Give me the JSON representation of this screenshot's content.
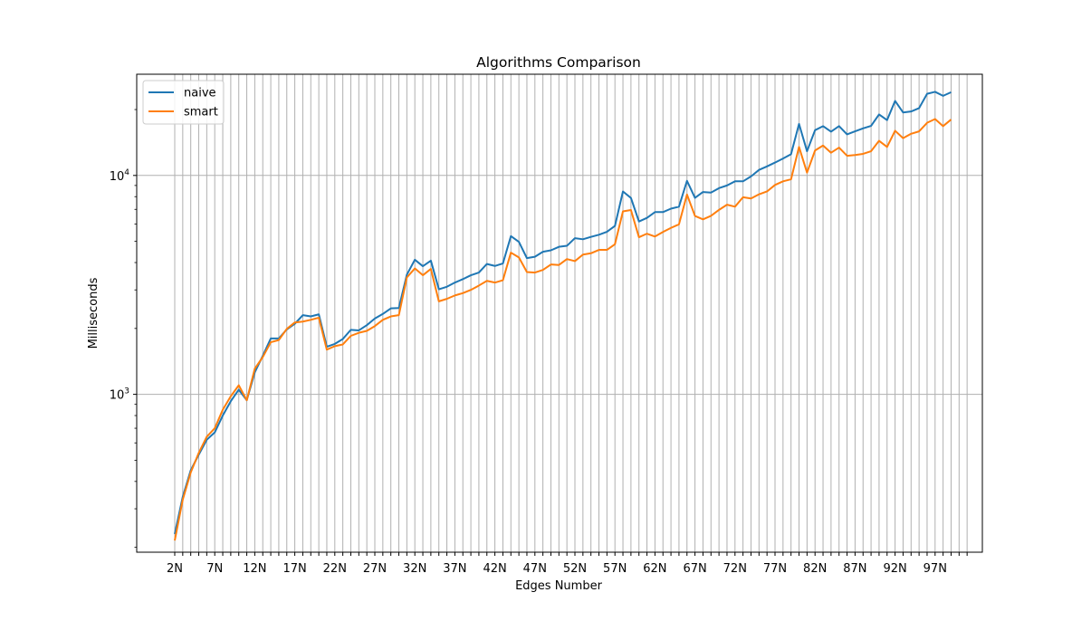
{
  "chart_data": {
    "type": "line",
    "title": "Algorithms Comparison",
    "xlabel": "Edges Number",
    "ylabel": "Milliseconds",
    "yscale": "log",
    "ylim": [
      190,
      29000
    ],
    "grid": "on",
    "legend_position": "top-left",
    "x_tick_labels": [
      "2N",
      "7N",
      "12N",
      "17N",
      "22N",
      "27N",
      "32N",
      "37N",
      "42N",
      "47N",
      "52N",
      "57N",
      "62N",
      "67N",
      "72N",
      "77N",
      "82N",
      "87N",
      "92N",
      "97N"
    ],
    "y_major_ticks": [
      1000,
      10000
    ],
    "y_tick_labels": [
      {
        "mantissa": "10",
        "exponent": "3"
      },
      {
        "mantissa": "10",
        "exponent": "4"
      }
    ],
    "colors": {
      "naive": "#1f77b4",
      "smart": "#ff7f0e",
      "grid": "#b0b0b0"
    },
    "x": [
      "2N",
      "3N",
      "4N",
      "5N",
      "6N",
      "7N",
      "8N",
      "9N",
      "10N",
      "11N",
      "12N",
      "13N",
      "14N",
      "15N",
      "16N",
      "17N",
      "18N",
      "19N",
      "20N",
      "21N",
      "22N",
      "23N",
      "24N",
      "25N",
      "26N",
      "27N",
      "28N",
      "29N",
      "30N",
      "31N",
      "32N",
      "33N",
      "34N",
      "35N",
      "36N",
      "37N",
      "38N",
      "39N",
      "40N",
      "41N",
      "42N",
      "43N",
      "44N",
      "45N",
      "46N",
      "47N",
      "48N",
      "49N",
      "50N",
      "51N",
      "52N",
      "53N",
      "54N",
      "55N",
      "56N",
      "57N",
      "58N",
      "59N",
      "60N",
      "61N",
      "62N",
      "63N",
      "64N",
      "65N",
      "66N",
      "67N",
      "68N",
      "69N",
      "70N",
      "71N",
      "72N",
      "73N",
      "74N",
      "75N",
      "76N",
      "77N",
      "78N",
      "79N",
      "80N",
      "81N",
      "82N",
      "83N",
      "84N",
      "85N",
      "86N",
      "87N",
      "88N",
      "89N",
      "90N",
      "91N",
      "92N",
      "93N",
      "94N",
      "95N",
      "96N",
      "97N",
      "98N",
      "99N",
      "100N",
      "101N"
    ],
    "series": [
      {
        "name": "naive",
        "values": [
          230,
          340,
          450,
          530,
          620,
          670,
          800,
          930,
          1050,
          940,
          1260,
          1500,
          1800,
          1800,
          1980,
          2100,
          2300,
          2270,
          2320,
          1650,
          1700,
          1790,
          1970,
          1960,
          2070,
          2220,
          2330,
          2470,
          2480,
          3520,
          4120,
          3850,
          4080,
          3020,
          3100,
          3240,
          3360,
          3500,
          3600,
          3940,
          3860,
          3960,
          5280,
          4970,
          4190,
          4250,
          4480,
          4550,
          4720,
          4770,
          5170,
          5110,
          5240,
          5360,
          5530,
          5880,
          8450,
          7890,
          6160,
          6400,
          6800,
          6800,
          7050,
          7200,
          9450,
          7900,
          8400,
          8350,
          8750,
          9000,
          9400,
          9400,
          9900,
          10600,
          11000,
          11450,
          11950,
          12500,
          17200,
          12900,
          16100,
          16800,
          15850,
          16800,
          15400,
          15900,
          16400,
          16850,
          19000,
          17900,
          21900,
          19400,
          19600,
          20300,
          23600,
          24100,
          23100,
          24000,
          null,
          null
        ]
      },
      {
        "name": "smart",
        "values": [
          215,
          330,
          440,
          540,
          640,
          700,
          850,
          980,
          1100,
          940,
          1310,
          1480,
          1730,
          1770,
          1990,
          2130,
          2150,
          2190,
          2240,
          1600,
          1660,
          1690,
          1850,
          1910,
          1950,
          2050,
          2190,
          2270,
          2300,
          3420,
          3760,
          3500,
          3740,
          2660,
          2730,
          2830,
          2900,
          3000,
          3140,
          3300,
          3240,
          3320,
          4440,
          4220,
          3620,
          3600,
          3700,
          3920,
          3900,
          4150,
          4060,
          4350,
          4410,
          4570,
          4570,
          4850,
          6850,
          6950,
          5220,
          5420,
          5260,
          5520,
          5760,
          5980,
          8180,
          6530,
          6300,
          6540,
          6960,
          7350,
          7200,
          7950,
          7850,
          8200,
          8450,
          9050,
          9400,
          9600,
          13500,
          10300,
          13000,
          13700,
          12700,
          13400,
          12300,
          12400,
          12550,
          12900,
          14400,
          13500,
          16000,
          14800,
          15500,
          15900,
          17400,
          18100,
          16800,
          18000,
          null,
          null
        ]
      }
    ]
  }
}
